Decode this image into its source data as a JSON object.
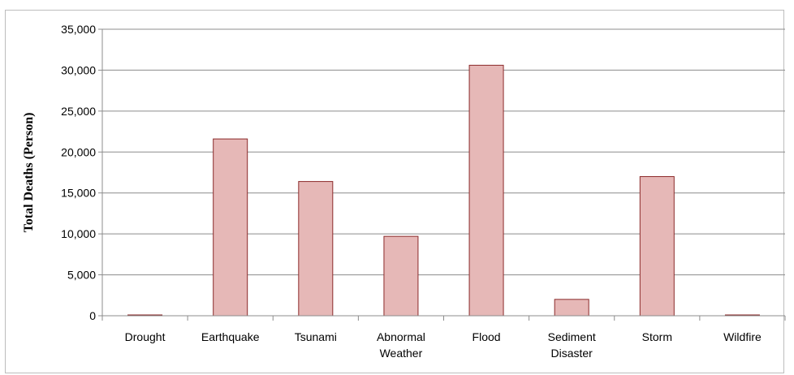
{
  "chart_data": {
    "type": "bar",
    "title": "",
    "xlabel": "",
    "ylabel": "Total Deaths  (Person)",
    "categories": [
      [
        "Drought"
      ],
      [
        "Earthquake"
      ],
      [
        "Tsunami"
      ],
      [
        "Abnormal",
        "Weather"
      ],
      [
        "Flood"
      ],
      [
        "Sediment",
        "Disaster"
      ],
      [
        "Storm"
      ],
      [
        "Wildfire"
      ]
    ],
    "values": [
      100,
      21600,
      16400,
      9700,
      30600,
      2000,
      17000,
      100
    ],
    "ylim": [
      0,
      35000
    ],
    "yticks": [
      0,
      5000,
      10000,
      15000,
      20000,
      25000,
      30000,
      35000
    ],
    "ytick_labels": [
      "0",
      "5,000",
      "10,000",
      "15,000",
      "20,000",
      "25,000",
      "30,000",
      "35,000"
    ],
    "grid": true,
    "legend": "none",
    "bar_fill": "#e6b8b7",
    "bar_stroke": "#8b2a2a",
    "grid_color": "#8c8c8c"
  }
}
